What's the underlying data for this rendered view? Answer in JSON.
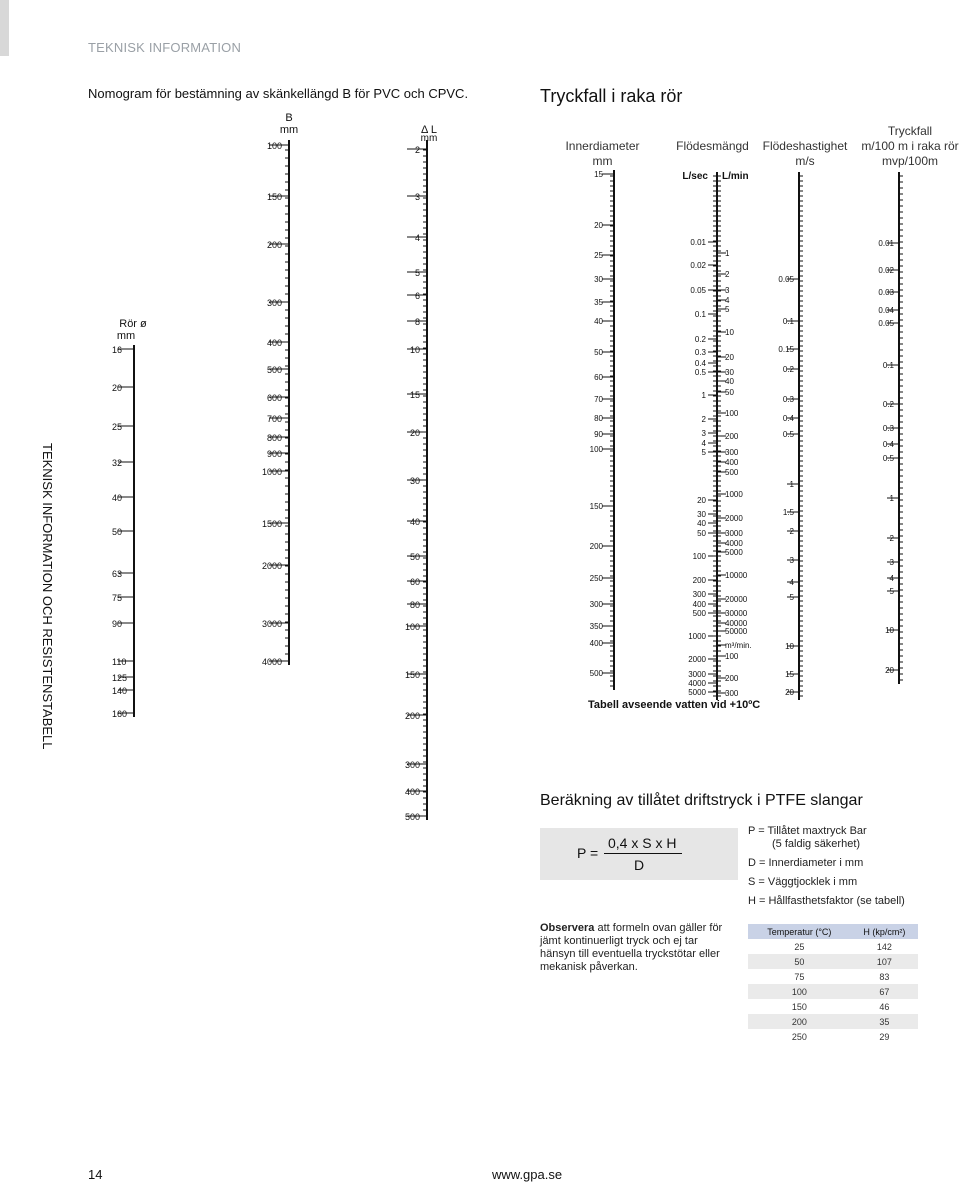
{
  "header": "TEKNISK INFORMATION",
  "side_text": "TEKNISK INFORMATION OCH RESISTENSTABELL",
  "nomogram": {
    "title": "Nomogram för bestämning av skänkellängd B för PVC och CPVC.",
    "scales": [
      {
        "id": "ror",
        "label": [
          "Rör ø",
          "mm"
        ],
        "labels": [
          "16",
          "20",
          "25",
          "32",
          "40",
          "50",
          "63",
          "75",
          "90",
          "110",
          "125",
          "140",
          "160"
        ]
      },
      {
        "id": "b",
        "label": [
          "B",
          "mm"
        ],
        "labels": [
          "100",
          "150",
          "200",
          "300",
          "400",
          "500",
          "600",
          "700",
          "800",
          "900",
          "1000",
          "1500",
          "2000",
          "3000",
          "4000"
        ]
      },
      {
        "id": "dl",
        "label": [
          "Δ L",
          "mm"
        ],
        "labels": [
          "2",
          "3",
          "4",
          "5",
          "6",
          "8",
          "10",
          "15",
          "20",
          "30",
          "40",
          "50",
          "60",
          "80",
          "100",
          "150",
          "200",
          "300",
          "400",
          "500"
        ]
      }
    ]
  },
  "pressure": {
    "title": "Tryckfall i raka rör",
    "col_titles": {
      "inner": [
        "Innerdiameter",
        "mm"
      ],
      "flow": [
        "Flödesmängd"
      ],
      "velocity": [
        "Flödeshastighet",
        "m/s"
      ],
      "drop": [
        "Tryckfall",
        "m/100 m i raka rör",
        "mvp/100m"
      ]
    },
    "flow_units": {
      "left": "L/sec",
      "right": "L/min"
    },
    "inner_labels": [
      "15",
      "20",
      "25",
      "30",
      "35",
      "40",
      "50",
      "60",
      "70",
      "80",
      "90",
      "100",
      "150",
      "200",
      "250",
      "300",
      "350",
      "400",
      "500"
    ],
    "lsec_labels": [
      "0.01",
      "0.02",
      "0.05",
      "0.1",
      "0.2",
      "0.3",
      "0.4",
      "0.5",
      "1",
      "2",
      "3",
      "4",
      "5",
      "20",
      "30",
      "40",
      "50",
      "100",
      "200",
      "300",
      "400",
      "500",
      "1000",
      "2000",
      "3000",
      "4000",
      "5000"
    ],
    "lmin_labels": [
      "1",
      "2",
      "3",
      "4",
      "5",
      "10",
      "20",
      "30",
      "40",
      "50",
      "100",
      "200",
      "300",
      "400",
      "500",
      "1000",
      "2000",
      "3000",
      "4000",
      "5000",
      "10000",
      "20000",
      "30000",
      "40000",
      "50000",
      "m³/min.",
      "100",
      "200",
      "300"
    ],
    "velocity_labels": [
      "0.05",
      "0.1",
      "0.15",
      "0.2",
      "0.3",
      "0.4",
      "0.5",
      "1",
      "1.5",
      "2",
      "3",
      "4",
      "5",
      "10",
      "15",
      "20"
    ],
    "drop_labels": [
      "0.01",
      "0.02",
      "0.03",
      "0.04",
      "0.05",
      "0.1",
      "0.2",
      "0.3",
      "0.4",
      "0.5",
      "1",
      "2",
      "3",
      "4",
      "5",
      "10",
      "20"
    ],
    "caption": "Tabell avseende vatten vid +10ºC"
  },
  "ptfe": {
    "title": "Beräkning av tillåtet driftstryck i PTFE slangar",
    "formula": {
      "lhs": "P =",
      "numerator": "0,4 x S x H",
      "denominator": "D"
    },
    "definitions": [
      "P = Tillåtet maxtryck Bar",
      "(5 faldig säkerhet)",
      "D = Innerdiameter i mm",
      "S = Väggtjocklek i mm",
      "H = Hållfasthetsfaktor (se tabell)"
    ],
    "note_bold": "Observera",
    "note_rest": " att formeln ovan gäller för jämt kontinuerligt tryck och ej tar hänsyn till eventuella tryckstötar eller mekanisk påverkan.",
    "table": {
      "headers": [
        "Temperatur (°C)",
        "H (kp/cm²)"
      ],
      "rows": [
        [
          "25",
          "142"
        ],
        [
          "50",
          "107"
        ],
        [
          "75",
          "83"
        ],
        [
          "100",
          "67"
        ],
        [
          "150",
          "46"
        ],
        [
          "200",
          "35"
        ],
        [
          "250",
          "29"
        ]
      ]
    }
  },
  "footer": {
    "page": "14",
    "url": "www.gpa.se"
  }
}
